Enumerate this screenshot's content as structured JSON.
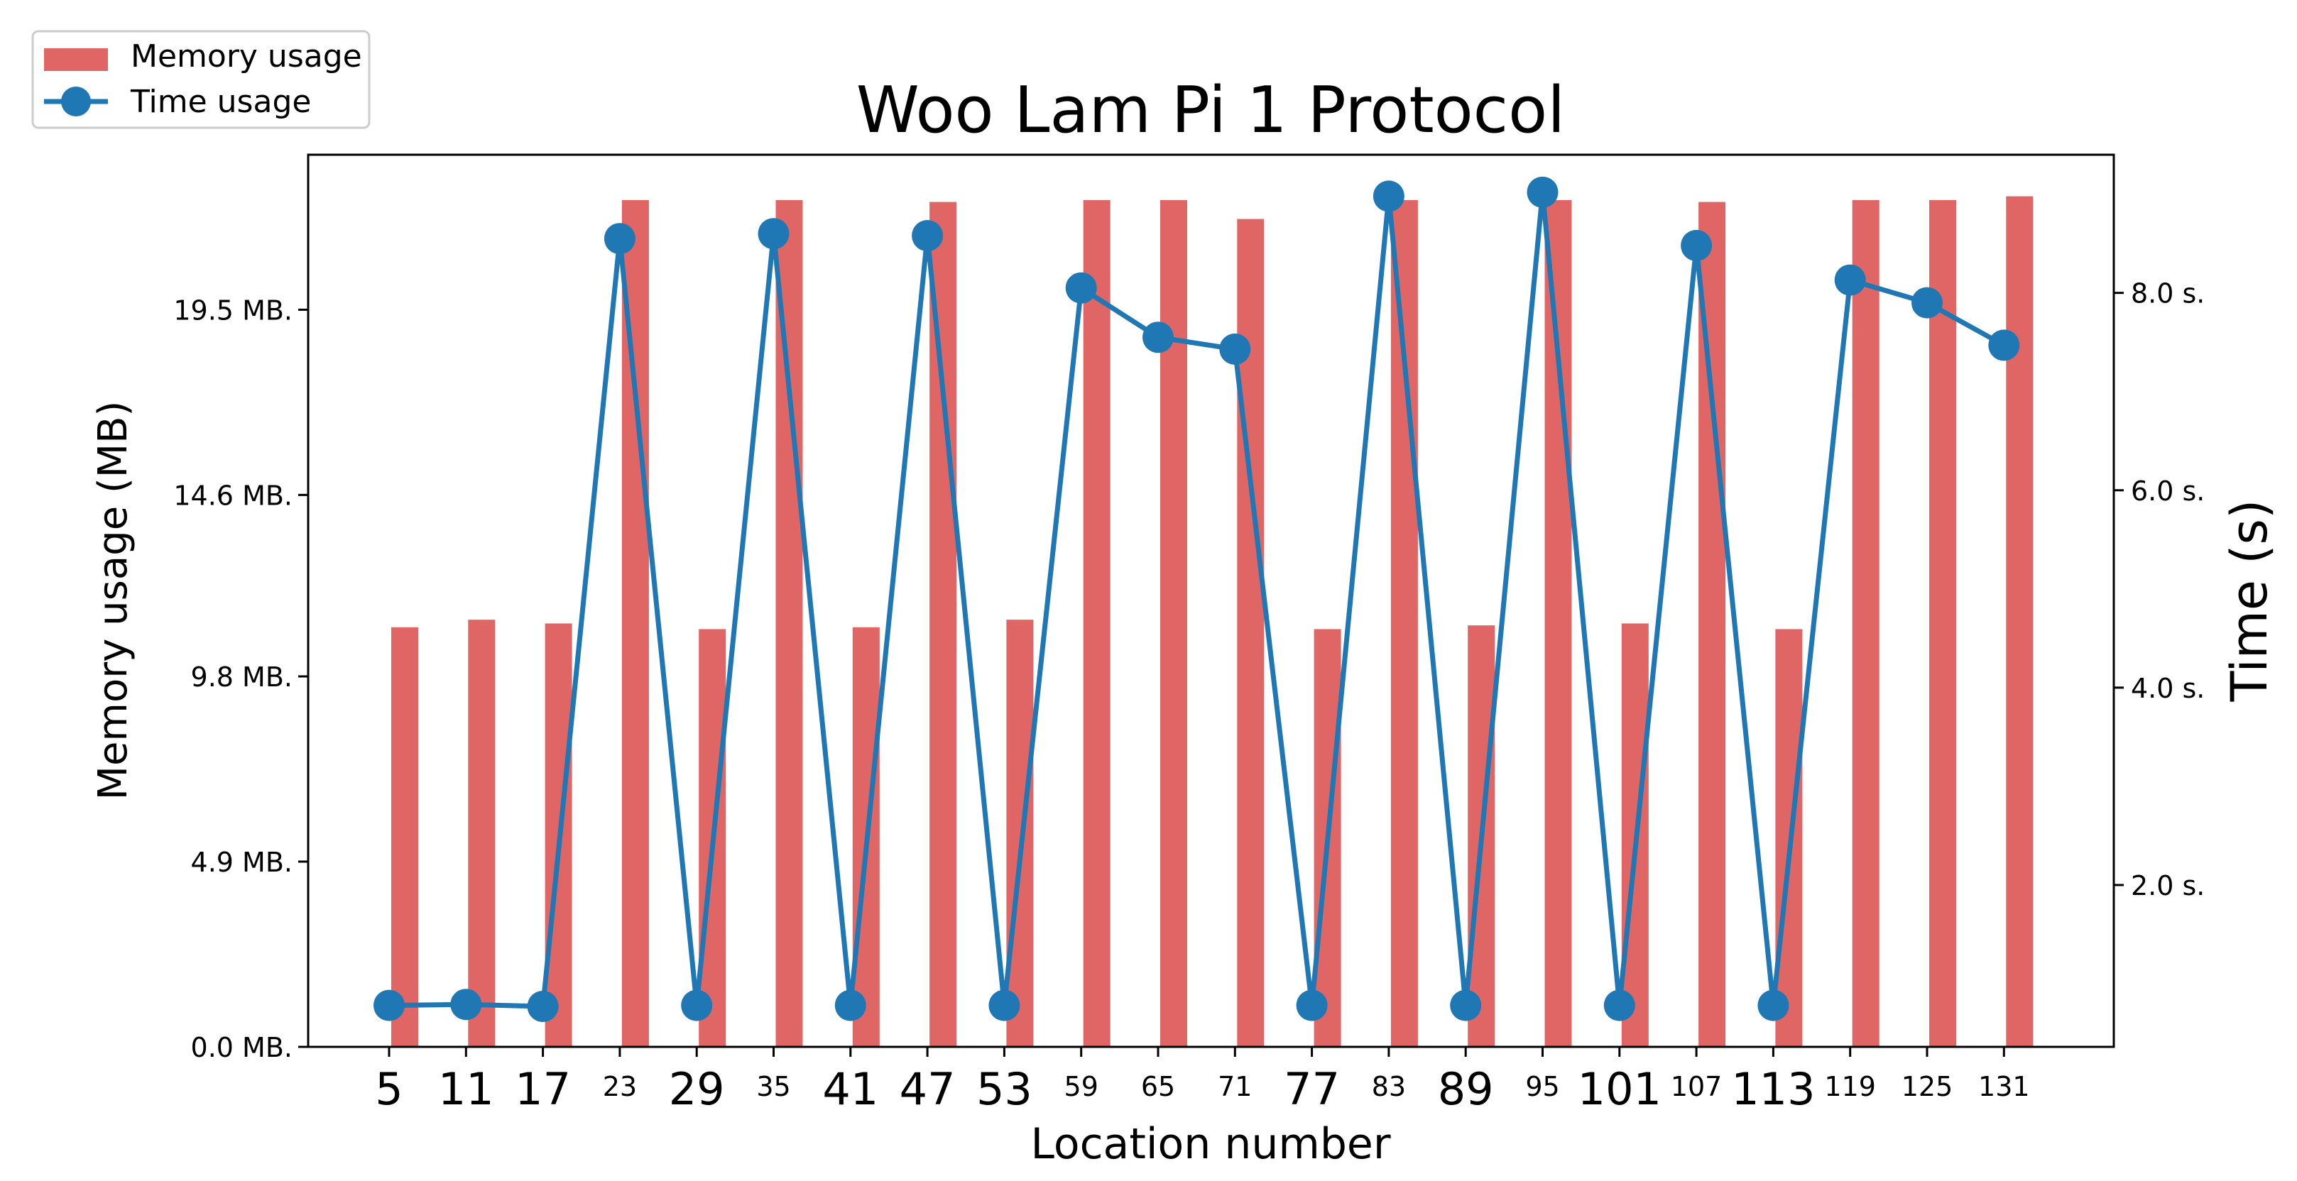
{
  "chart_data": {
    "type": "bar",
    "title": "Woo Lam Pi 1 Protocol",
    "xlabel": "Location number",
    "ylabel": "Memory usage (MB)",
    "y2label": "Time (s)",
    "categories": [
      "5",
      "11",
      "17",
      "23",
      "29",
      "35",
      "41",
      "47",
      "53",
      "59",
      "65",
      "71",
      "77",
      "83",
      "89",
      "95",
      "101",
      "107",
      "113",
      "119",
      "125",
      "131"
    ],
    "highlighted_categories": [
      "5",
      "11",
      "17",
      "29",
      "41",
      "47",
      "53",
      "77",
      "89",
      "101",
      "113"
    ],
    "highlight_color": "#ff0000",
    "y_ticks": [
      "0.0 MB.",
      "4.9 MB.",
      "9.8 MB.",
      "14.6 MB.",
      "19.5 MB."
    ],
    "y_tick_values": [
      0.0,
      4.9,
      9.8,
      14.6,
      19.5
    ],
    "ylim": [
      0,
      23.6
    ],
    "y2_ticks": [
      "2.0 s.",
      "4.0 s.",
      "6.0 s.",
      "8.0 s."
    ],
    "y2_tick_values": [
      2.0,
      4.0,
      6.0,
      8.0
    ],
    "y2lim": [
      0.36,
      9.4
    ],
    "grid": false,
    "legend_position": "top-left, outside plot",
    "series": [
      {
        "name": "Memory usage",
        "type": "bar",
        "axis": "left",
        "color": "#e06666",
        "values": [
          11.1,
          11.3,
          11.2,
          22.4,
          11.05,
          22.4,
          11.1,
          22.35,
          11.3,
          22.4,
          22.4,
          21.9,
          11.05,
          22.4,
          11.15,
          22.4,
          11.2,
          22.35,
          11.05,
          22.4,
          22.4,
          22.5
        ]
      },
      {
        "name": "Time usage",
        "type": "line",
        "axis": "right",
        "color": "#1f77b4",
        "values": [
          0.78,
          0.79,
          0.77,
          8.55,
          0.78,
          8.6,
          0.78,
          8.58,
          0.78,
          8.05,
          7.55,
          7.43,
          0.78,
          8.98,
          0.78,
          9.02,
          0.78,
          8.48,
          0.78,
          8.13,
          7.9,
          7.47
        ]
      }
    ]
  }
}
